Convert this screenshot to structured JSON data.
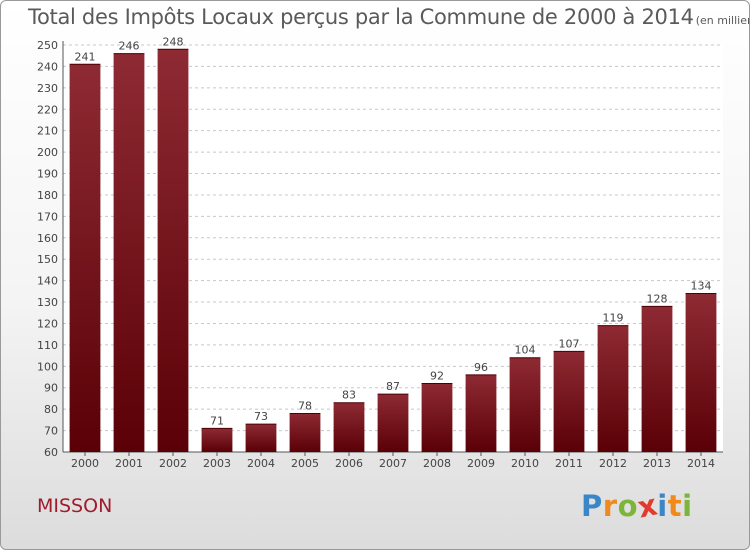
{
  "chart_data": {
    "type": "bar",
    "title": "Total des Impôts Locaux perçus par la Commune de 2000 à 2014",
    "subtitle": "(en milliers d'€)",
    "categories": [
      "2000",
      "2001",
      "2002",
      "2003",
      "2004",
      "2005",
      "2006",
      "2007",
      "2008",
      "2009",
      "2010",
      "2011",
      "2012",
      "2013",
      "2014"
    ],
    "values": [
      241,
      246,
      248,
      71,
      73,
      78,
      83,
      87,
      92,
      96,
      104,
      107,
      119,
      128,
      134
    ],
    "ylim": [
      60,
      250
    ],
    "yticks": [
      60,
      70,
      80,
      90,
      100,
      110,
      120,
      130,
      140,
      150,
      160,
      170,
      180,
      190,
      200,
      210,
      220,
      230,
      240,
      250
    ],
    "grid": true,
    "legend": "none",
    "bar_color": "#7a1a22"
  },
  "commune": "MISSON",
  "logo": {
    "letters": [
      "P",
      "r",
      "o",
      "x",
      "i",
      "t",
      "i"
    ],
    "colors": [
      "#3b86c6",
      "#f08a1c",
      "#7db53b",
      "#e23b2e",
      "#3b86c6",
      "#f08a1c",
      "#7db53b"
    ]
  }
}
